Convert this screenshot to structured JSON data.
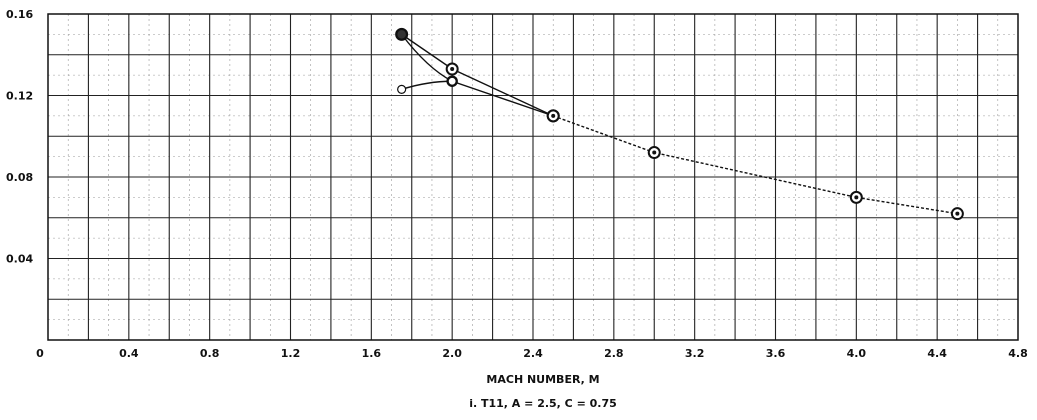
{
  "chart_data": {
    "type": "line",
    "xlabel": "MACH NUMBER, M",
    "caption": "i.  T11, A = 2.5, C = 0.75",
    "xlim": [
      0,
      4.8
    ],
    "ylim": [
      0,
      0.16
    ],
    "x_ticks": [
      "0",
      "0.4",
      "0.8",
      "1.2",
      "1.6",
      "2.0",
      "2.4",
      "2.8",
      "3.2",
      "3.6",
      "4.0",
      "4.4",
      "4.8"
    ],
    "y_ticks": [
      "0.04",
      "0.08",
      "0.12",
      "0.16"
    ],
    "grid": true,
    "series": [
      {
        "style": "solid",
        "marker": "circle",
        "points": [
          [
            1.75,
            0.15
          ],
          [
            2.0,
            0.133
          ],
          [
            2.5,
            0.11
          ]
        ]
      },
      {
        "style": "solid",
        "marker": "circle-filled",
        "points": [
          [
            1.75,
            0.15
          ],
          [
            2.0,
            0.127
          ],
          [
            2.5,
            0.11
          ]
        ]
      },
      {
        "style": "solid",
        "marker": "open-circle",
        "points": [
          [
            1.75,
            0.123
          ],
          [
            2.0,
            0.127
          ]
        ]
      },
      {
        "style": "dashed",
        "marker": "circle",
        "points": [
          [
            2.5,
            0.11
          ],
          [
            3.0,
            0.092
          ],
          [
            4.0,
            0.07
          ],
          [
            4.5,
            0.062
          ]
        ]
      }
    ]
  }
}
